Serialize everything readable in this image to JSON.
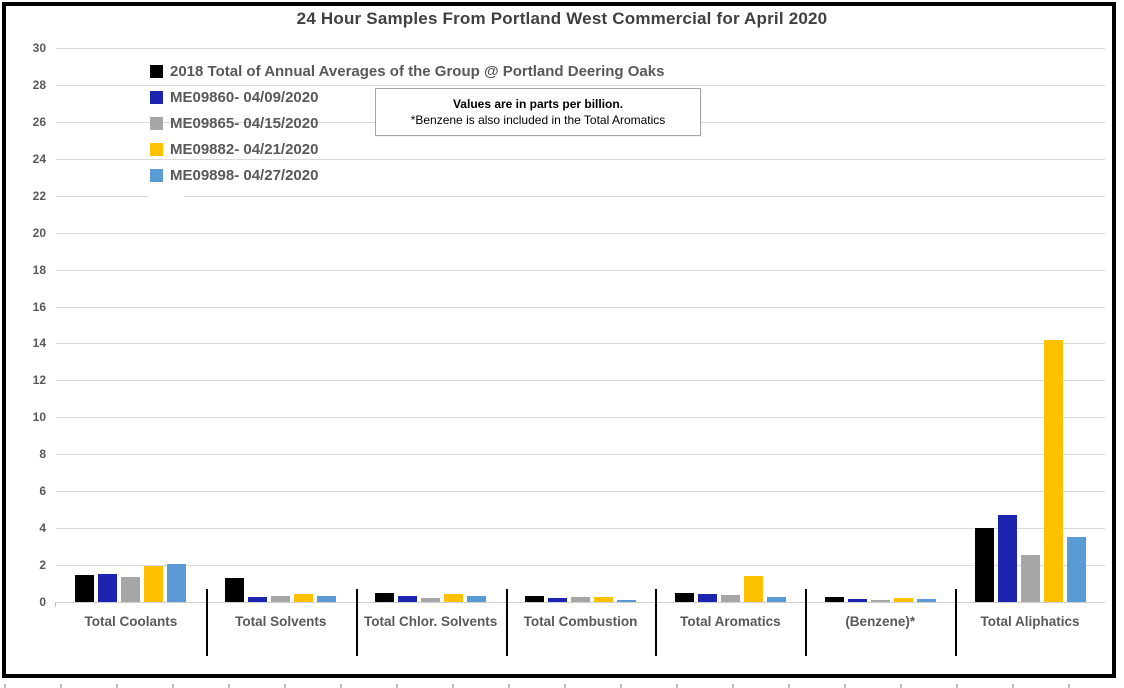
{
  "title": "24 Hour Samples From Portland West Commercial for April 2020",
  "note": {
    "line1": "Values are in parts per billion.",
    "line2": "*Benzene is also included in the Total Aromatics"
  },
  "colors": {
    "title_text": "#404040",
    "axis_text": "#595959",
    "gridline": "#d9d9d9",
    "frame_border": "#000000",
    "note_border": "#a6a6a6"
  },
  "chart_data": {
    "type": "bar",
    "title": "24 Hour Samples From Portland West Commercial for April 2020",
    "xlabel": "",
    "ylabel": "parts per billion",
    "ylim": [
      0,
      30
    ],
    "ytick_step": 2,
    "grid": true,
    "legend_position": "upper-left-inside",
    "categories": [
      "Total Coolants",
      "Total Solvents",
      "Total Chlor. Solvents",
      "Total Combustion",
      "Total Aromatics",
      "(Benzene)*",
      "Total Aliphatics"
    ],
    "series": [
      {
        "name": "2018 Total of Annual Averages of the Group @ Portland Deering Oaks",
        "color": "#000000",
        "values": [
          1.45,
          1.3,
          0.5,
          0.3,
          0.5,
          0.25,
          4.0
        ]
      },
      {
        "name": "ME09860- 04/09/2020",
        "color": "#1c24b0",
        "values": [
          1.5,
          0.25,
          0.3,
          0.2,
          0.42,
          0.15,
          4.7
        ]
      },
      {
        "name": "ME09865- 04/15/2020",
        "color": "#a6a6a6",
        "values": [
          1.35,
          0.3,
          0.2,
          0.27,
          0.38,
          0.1,
          2.55
        ]
      },
      {
        "name": "ME09882- 04/21/2020",
        "color": "#ffc000",
        "values": [
          1.95,
          0.45,
          0.45,
          0.27,
          1.4,
          0.2,
          14.2
        ]
      },
      {
        "name": "ME09898- 04/27/2020",
        "color": "#5b9bd5",
        "values": [
          2.05,
          0.3,
          0.3,
          0.1,
          0.27,
          0.15,
          3.5
        ]
      }
    ]
  }
}
